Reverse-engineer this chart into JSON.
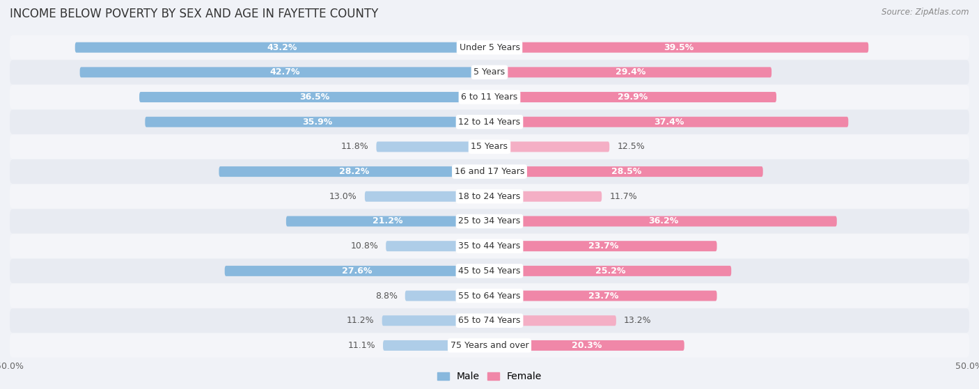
{
  "title": "INCOME BELOW POVERTY BY SEX AND AGE IN FAYETTE COUNTY",
  "source": "Source: ZipAtlas.com",
  "categories": [
    "Under 5 Years",
    "5 Years",
    "6 to 11 Years",
    "12 to 14 Years",
    "15 Years",
    "16 and 17 Years",
    "18 to 24 Years",
    "25 to 34 Years",
    "35 to 44 Years",
    "45 to 54 Years",
    "55 to 64 Years",
    "65 to 74 Years",
    "75 Years and over"
  ],
  "male_values": [
    43.2,
    42.7,
    36.5,
    35.9,
    11.8,
    28.2,
    13.0,
    21.2,
    10.8,
    27.6,
    8.8,
    11.2,
    11.1
  ],
  "female_values": [
    39.5,
    29.4,
    29.9,
    37.4,
    12.5,
    28.5,
    11.7,
    36.2,
    23.7,
    25.2,
    23.7,
    13.2,
    20.3
  ],
  "male_color": "#88b8dd",
  "female_color": "#f087a8",
  "male_color_light": "#aecde8",
  "female_color_light": "#f4afc5",
  "background_color": "#f0f2f7",
  "row_color_odd": "#e8ebf2",
  "row_color_even": "#f4f5f9",
  "axis_range": 50.0,
  "bar_height": 0.42,
  "legend_male": "Male",
  "legend_female": "Female",
  "title_fontsize": 12,
  "label_fontsize": 9,
  "category_fontsize": 9,
  "axis_label_fontsize": 9,
  "source_fontsize": 8.5
}
